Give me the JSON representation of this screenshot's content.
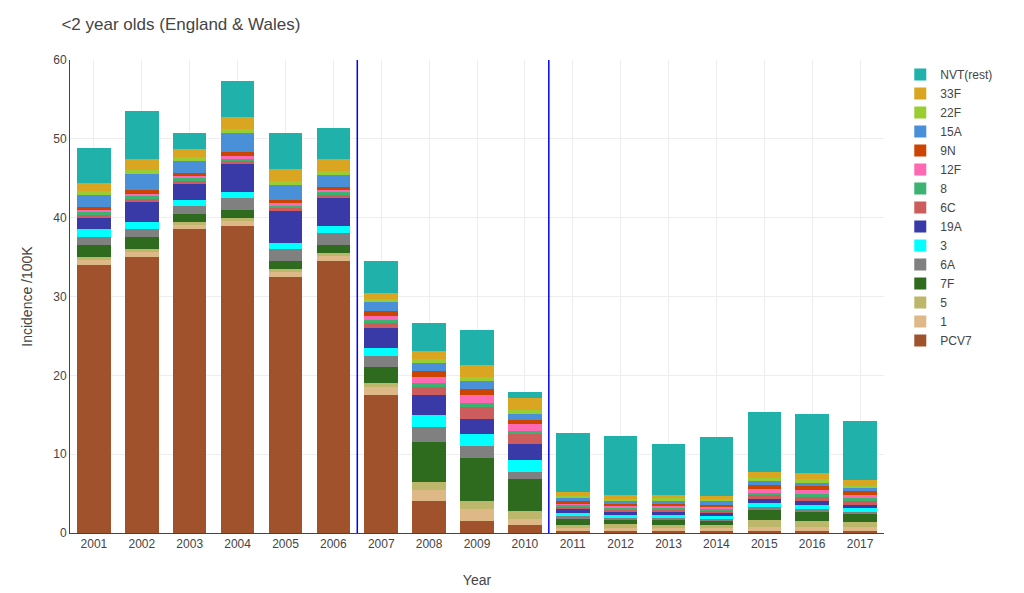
{
  "chart_data": {
    "type": "bar",
    "stacked": true,
    "title": "<2 year olds (England & Wales)",
    "xlabel": "Year",
    "ylabel": "Incidence /100K",
    "x": [
      2001,
      2002,
      2003,
      2004,
      2005,
      2006,
      2007,
      2008,
      2009,
      2010,
      2011,
      2012,
      2013,
      2014,
      2015,
      2016,
      2017
    ],
    "xlim": [
      2000.5,
      2017.5
    ],
    "xticks": [
      2001,
      2002,
      2003,
      2004,
      2005,
      2006,
      2007,
      2008,
      2009,
      2010,
      2011,
      2012,
      2013,
      2014,
      2015,
      2016,
      2017
    ],
    "ylim": [
      0,
      60
    ],
    "yticks": [
      0,
      10,
      20,
      30,
      40,
      50,
      60
    ],
    "grid": true,
    "legend": "right",
    "vlines": [
      {
        "x": 2006.5,
        "color": "blue"
      },
      {
        "x": 2010.5,
        "color": "blue"
      }
    ],
    "series": [
      {
        "name": "PCV7",
        "color": "#A0522D",
        "values": [
          34.0,
          35.0,
          38.5,
          39.0,
          32.5,
          34.5,
          17.5,
          4.0,
          1.5,
          1.0,
          0.2,
          0.2,
          0.2,
          0.2,
          0.2,
          0.2,
          0.2
        ]
      },
      {
        "name": "1",
        "color": "#DEB887",
        "values": [
          0.6,
          0.6,
          0.6,
          0.6,
          0.6,
          0.6,
          1.0,
          1.5,
          1.5,
          0.8,
          0.4,
          0.4,
          0.4,
          0.4,
          0.5,
          0.5,
          0.5
        ]
      },
      {
        "name": "5",
        "color": "#BDB76B",
        "values": [
          0.4,
          0.4,
          0.4,
          0.4,
          0.4,
          0.4,
          0.5,
          1.0,
          1.0,
          1.0,
          0.4,
          0.5,
          0.4,
          0.4,
          1.0,
          0.8,
          0.7
        ]
      },
      {
        "name": "7F",
        "color": "#2E6B1E",
        "values": [
          1.5,
          1.5,
          1.0,
          1.0,
          1.0,
          1.0,
          2.0,
          5.0,
          5.5,
          4.0,
          0.8,
          0.5,
          0.6,
          0.5,
          1.2,
          1.2,
          1.0
        ]
      },
      {
        "name": "6A",
        "color": "#808080",
        "values": [
          1.0,
          1.0,
          1.0,
          1.5,
          1.5,
          1.5,
          1.5,
          2.0,
          1.5,
          1.0,
          0.3,
          0.3,
          0.3,
          0.3,
          0.4,
          0.4,
          0.3
        ]
      },
      {
        "name": "3",
        "color": "#00FFFF",
        "values": [
          1.0,
          1.0,
          0.8,
          0.8,
          0.8,
          1.0,
          1.0,
          1.5,
          1.5,
          1.5,
          0.4,
          0.4,
          0.4,
          0.4,
          0.5,
          0.5,
          0.5
        ]
      },
      {
        "name": "19A",
        "color": "#3939A8",
        "values": [
          1.5,
          2.5,
          2.0,
          3.5,
          4.0,
          3.5,
          2.5,
          2.5,
          2.0,
          2.0,
          0.5,
          0.4,
          0.4,
          0.4,
          0.5,
          0.5,
          0.4
        ]
      },
      {
        "name": "6C",
        "color": "#CD5C5C",
        "values": [
          0.4,
          0.4,
          0.4,
          0.4,
          0.4,
          0.4,
          0.6,
          1.0,
          1.5,
          1.2,
          0.3,
          0.3,
          0.3,
          0.3,
          0.5,
          0.5,
          0.5
        ]
      },
      {
        "name": "8",
        "color": "#3CB371",
        "values": [
          0.3,
          0.3,
          0.3,
          0.3,
          0.3,
          0.3,
          0.4,
          0.5,
          0.5,
          0.5,
          0.2,
          0.2,
          0.2,
          0.2,
          0.3,
          0.3,
          0.3
        ]
      },
      {
        "name": "12F",
        "color": "#FF69B4",
        "values": [
          0.3,
          0.3,
          0.3,
          0.3,
          0.3,
          0.3,
          0.5,
          0.8,
          1.0,
          0.8,
          0.3,
          0.3,
          0.3,
          0.3,
          0.5,
          0.5,
          0.4
        ]
      },
      {
        "name": "9N",
        "color": "#CC4400",
        "values": [
          0.4,
          0.5,
          0.4,
          0.5,
          0.4,
          0.4,
          0.6,
          0.8,
          0.8,
          0.5,
          0.2,
          0.2,
          0.2,
          0.2,
          0.5,
          0.5,
          0.5
        ]
      },
      {
        "name": "15A",
        "color": "#4A90D9",
        "values": [
          1.5,
          2.0,
          1.5,
          2.5,
          2.0,
          1.5,
          1.2,
          1.0,
          1.0,
          0.8,
          0.4,
          0.3,
          0.4,
          0.4,
          0.5,
          0.5,
          0.4
        ]
      },
      {
        "name": "22F",
        "color": "#9ACD32",
        "values": [
          0.5,
          0.5,
          0.5,
          0.5,
          0.5,
          0.5,
          0.4,
          0.5,
          0.5,
          0.5,
          0.3,
          0.3,
          0.3,
          0.3,
          0.4,
          0.4,
          0.3
        ]
      },
      {
        "name": "33F",
        "color": "#DAA520",
        "values": [
          1.0,
          1.5,
          1.0,
          1.5,
          1.5,
          1.5,
          0.8,
          1.0,
          1.5,
          1.5,
          0.5,
          0.5,
          0.4,
          0.4,
          0.8,
          0.8,
          0.7
        ]
      },
      {
        "name": "NVT(rest)",
        "color": "#20B2AA",
        "values": [
          4.5,
          6.0,
          2.0,
          4.5,
          4.5,
          4.0,
          4.0,
          3.5,
          4.5,
          0.8,
          7.5,
          7.5,
          6.5,
          7.5,
          7.5,
          7.5,
          7.5
        ]
      }
    ]
  }
}
